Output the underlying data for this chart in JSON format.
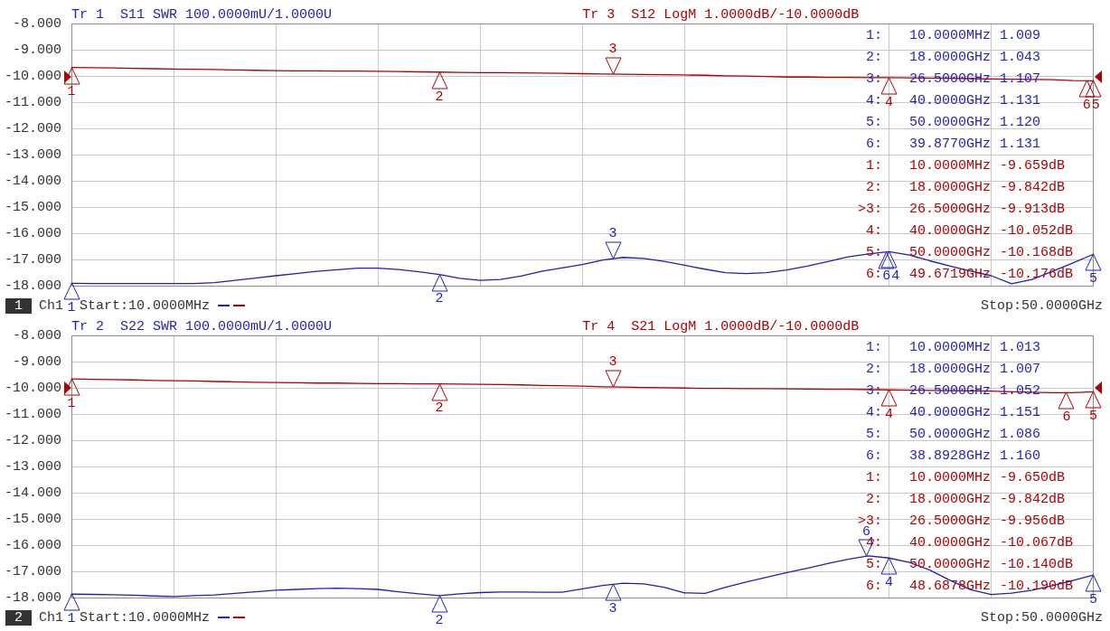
{
  "chart_data": [
    {
      "type": "line",
      "grid": true,
      "tick_labels": "y",
      "categories": [
        null,
        null,
        null,
        null,
        null,
        null,
        null,
        null,
        null,
        null,
        null,
        null,
        null,
        null,
        null,
        null,
        null,
        null,
        null,
        null,
        null,
        null,
        null,
        null,
        null,
        null,
        null,
        null,
        null,
        null,
        null,
        null,
        null,
        null,
        null,
        null,
        null,
        null,
        null,
        null,
        null,
        null,
        null,
        null,
        null,
        null,
        null,
        null,
        null,
        null,
        null
      ],
      "series": [
        {
          "name": "Tr 1  S11 SWR 100.0000mU/1.0000U",
          "color": "#1f1fb8",
          "values": [
            -17.91,
            -17.92,
            -17.92,
            -17.92,
            -17.92,
            -17.92,
            -17.92,
            -17.88,
            -17.8,
            -17.71,
            -17.62,
            -17.54,
            -17.45,
            -17.39,
            -17.33,
            -17.33,
            -17.38,
            -17.47,
            -17.57,
            -17.72,
            -17.8,
            -17.76,
            -17.63,
            -17.45,
            -17.32,
            -17.19,
            -17.02,
            -16.92,
            -16.96,
            -17.07,
            -17.22,
            -17.37,
            -17.5,
            -17.54,
            -17.5,
            -17.4,
            -17.25,
            -17.08,
            -16.9,
            -16.79,
            -16.7,
            -16.83,
            -17.05,
            -17.25,
            -17.44,
            -17.62,
            -17.93,
            -17.76,
            -17.45,
            -17.13,
            -16.8
          ]
        },
        {
          "name": "Tr 3  S12 LogM 1.0000dB/-10.0000dB",
          "color": "#b00000",
          "values": [
            -9.66,
            -9.67,
            -9.68,
            -9.7,
            -9.71,
            -9.72,
            -9.73,
            -9.74,
            -9.76,
            -9.77,
            -9.78,
            -9.79,
            -9.79,
            -9.8,
            -9.8,
            -9.81,
            -9.82,
            -9.83,
            -9.84,
            -9.85,
            -9.86,
            -9.86,
            -9.87,
            -9.88,
            -9.89,
            -9.9,
            -9.91,
            -9.92,
            -9.93,
            -9.94,
            -9.95,
            -9.96,
            -9.98,
            -9.99,
            -10.01,
            -10.03,
            -10.03,
            -10.04,
            -10.04,
            -10.05,
            -10.05,
            -10.06,
            -10.07,
            -10.08,
            -10.09,
            -10.1,
            -10.11,
            -10.12,
            -10.13,
            -10.16,
            -10.17
          ]
        }
      ],
      "ylim": [
        -18,
        -8
      ],
      "yticks": [
        {
          "value": -18,
          "label": "-18.000"
        },
        {
          "value": -17,
          "label": "-17.000"
        },
        {
          "value": -16,
          "label": "-16.000"
        },
        {
          "value": -15,
          "label": "-15.000"
        },
        {
          "value": -14,
          "label": "-14.000"
        },
        {
          "value": -13,
          "label": "-13.000"
        },
        {
          "value": -12,
          "label": "-12.000"
        },
        {
          "value": -11,
          "label": "-11.000"
        },
        {
          "value": -10,
          "label": "-10.000"
        },
        {
          "value": -9,
          "label": "-9.000"
        },
        {
          "value": -8,
          "label": "-8.000"
        }
      ],
      "annotations": [
        "1",
        "Ch1",
        "Start:10.0000MHz",
        "Stop:50.0000GHz",
        "1:",
        "10.0000MHz",
        "1.009",
        "2:",
        "18.0000GHz",
        "1.043",
        "3:",
        "26.5000GHz",
        "1.107",
        "4:",
        "40.0000GHz",
        "1.131",
        "5:",
        "50.0000GHz",
        "1.120",
        "6:",
        "39.8770GHz",
        "1.131",
        "1:",
        "10.0000MHz",
        "-9.659dB",
        "2:",
        "18.0000GHz",
        "-9.842dB",
        ">3:",
        "26.5000GHz",
        "-9.913dB",
        "4:",
        "40.0000GHz",
        "-10.052dB",
        "5:",
        "50.0000GHz",
        "-10.168dB",
        "6:",
        "49.6719GHz",
        "-10.176dB",
        "1",
        "2",
        "3",
        "4",
        "6",
        "5",
        "1",
        "2",
        "3",
        "6",
        "4",
        "5"
      ]
    },
    {
      "type": "line",
      "grid": true,
      "tick_labels": "y",
      "categories": [
        null,
        null,
        null,
        null,
        null,
        null,
        null,
        null,
        null,
        null,
        null,
        null,
        null,
        null,
        null,
        null,
        null,
        null,
        null,
        null,
        null,
        null,
        null,
        null,
        null,
        null,
        null,
        null,
        null,
        null,
        null,
        null,
        null,
        null,
        null,
        null,
        null,
        null,
        null,
        null,
        null,
        null,
        null,
        null,
        null,
        null,
        null,
        null,
        null,
        null,
        null
      ],
      "series": [
        {
          "name": "Tr 2  S22 SWR 100.0000mU/1.0000U",
          "color": "#1f1fb8",
          "values": [
            -17.87,
            -17.88,
            -17.89,
            -17.91,
            -17.94,
            -17.96,
            -17.93,
            -17.9,
            -17.84,
            -17.78,
            -17.72,
            -17.69,
            -17.66,
            -17.64,
            -17.66,
            -17.69,
            -17.78,
            -17.86,
            -17.93,
            -17.86,
            -17.81,
            -17.79,
            -17.79,
            -17.8,
            -17.8,
            -17.67,
            -17.54,
            -17.45,
            -17.48,
            -17.61,
            -17.82,
            -17.84,
            -17.61,
            -17.41,
            -17.23,
            -17.05,
            -16.88,
            -16.7,
            -16.54,
            -16.41,
            -16.49,
            -16.66,
            -16.95,
            -17.35,
            -17.7,
            -17.88,
            -17.83,
            -17.72,
            -17.55,
            -17.35,
            -17.14
          ]
        },
        {
          "name": "Tr 4  S21 LogM 1.0000dB/-10.0000dB",
          "color": "#b00000",
          "values": [
            -9.65,
            -9.67,
            -9.68,
            -9.69,
            -9.71,
            -9.72,
            -9.73,
            -9.75,
            -9.76,
            -9.78,
            -9.79,
            -9.8,
            -9.81,
            -9.81,
            -9.82,
            -9.83,
            -9.83,
            -9.84,
            -9.84,
            -9.85,
            -9.86,
            -9.87,
            -9.88,
            -9.9,
            -9.91,
            -9.93,
            -9.95,
            -9.96,
            -9.98,
            -9.99,
            -10.0,
            -10.01,
            -10.01,
            -10.02,
            -10.02,
            -10.03,
            -10.04,
            -10.05,
            -10.05,
            -10.06,
            -10.07,
            -10.08,
            -10.09,
            -10.1,
            -10.11,
            -10.12,
            -10.14,
            -10.16,
            -10.18,
            -10.18,
            -10.14
          ]
        }
      ],
      "ylim": [
        -18,
        -8
      ],
      "yticks": [
        {
          "value": -18,
          "label": "-18.000"
        },
        {
          "value": -17,
          "label": "-17.000"
        },
        {
          "value": -16,
          "label": "-16.000"
        },
        {
          "value": -15,
          "label": "-15.000"
        },
        {
          "value": -14,
          "label": "-14.000"
        },
        {
          "value": -13,
          "label": "-13.000"
        },
        {
          "value": -12,
          "label": "-12.000"
        },
        {
          "value": -11,
          "label": "-11.000"
        },
        {
          "value": -10,
          "label": "-10.000"
        },
        {
          "value": -9,
          "label": "-9.000"
        },
        {
          "value": -8,
          "label": "-8.000"
        }
      ],
      "annotations": [
        "2",
        "Ch1",
        "Start:10.0000MHz",
        "Stop:50.0000GHz",
        "1:",
        "10.0000MHz",
        "1.013",
        "2:",
        "18.0000GHz",
        "1.007",
        "3:",
        "26.5000GHz",
        "1.052",
        "4:",
        "40.0000GHz",
        "1.151",
        "5:",
        "50.0000GHz",
        "1.086",
        "6:",
        "38.8928GHz",
        "1.160",
        "1:",
        "10.0000MHz",
        "-9.650dB",
        "2:",
        "18.0000GHz",
        "-9.842dB",
        ">3:",
        "26.5000GHz",
        "-9.956dB",
        "4:",
        "40.0000GHz",
        "-10.067dB",
        "5:",
        "50.0000GHz",
        "-10.140dB",
        "6:",
        "48.6878GHz",
        "-10.190dB",
        "1",
        "2",
        "3",
        "4",
        "6",
        "5",
        "1",
        "2",
        "3",
        "4",
        "6",
        "5"
      ]
    }
  ]
}
